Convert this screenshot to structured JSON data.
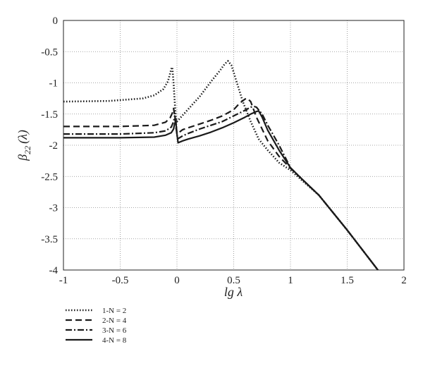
{
  "chart_data": {
    "type": "line",
    "xlabel": "lg λ",
    "ylabel_main": "β",
    "ylabel_sub": "22",
    "ylabel_tail": "(λ)",
    "xlim": [
      -1,
      2
    ],
    "ylim": [
      -4,
      0
    ],
    "x_ticks": [
      -1,
      -0.5,
      0,
      0.5,
      1,
      1.5,
      2
    ],
    "x_tick_labels": [
      "-1",
      "-0.5",
      "0",
      "0.5",
      "1",
      "1.5",
      "2"
    ],
    "y_ticks": [
      0,
      -0.5,
      -1,
      -1.5,
      -2,
      -2.5,
      -3,
      -3.5,
      -4
    ],
    "y_tick_labels": [
      "0",
      "-0.5",
      "-1",
      "-1.5",
      "-2",
      "-2.5",
      "-3",
      "-3.5",
      "-4"
    ],
    "grid": true,
    "legend_position": "below-left",
    "series": [
      {
        "name": "1-N = 2",
        "style": "dotted",
        "x": [
          -1,
          -0.6,
          -0.3,
          -0.2,
          -0.12,
          -0.08,
          -0.06,
          -0.05,
          -0.045,
          -0.04,
          -0.03,
          -0.02,
          -0.01,
          0.0,
          0.05,
          0.1,
          0.2,
          0.3,
          0.38,
          0.42,
          0.45,
          0.48,
          0.52,
          0.58,
          0.65,
          0.72,
          0.8,
          0.9,
          1.0,
          1.1,
          1.25,
          1.5,
          1.77
        ],
        "y": [
          -1.3,
          -1.29,
          -1.25,
          -1.2,
          -1.1,
          -0.98,
          -0.85,
          -0.78,
          -0.75,
          -0.78,
          -1.0,
          -1.3,
          -1.55,
          -1.62,
          -1.52,
          -1.42,
          -1.22,
          -0.98,
          -0.8,
          -0.7,
          -0.65,
          -0.72,
          -0.95,
          -1.3,
          -1.62,
          -1.9,
          -2.08,
          -2.28,
          -2.4,
          -2.56,
          -2.8,
          -3.36,
          -4.0
        ]
      },
      {
        "name": "2-N = 4",
        "style": "dashed",
        "x": [
          -1,
          -0.5,
          -0.2,
          -0.1,
          -0.06,
          -0.04,
          -0.03,
          -0.02,
          -0.01,
          0.0,
          0.05,
          0.1,
          0.2,
          0.3,
          0.4,
          0.5,
          0.55,
          0.6,
          0.62,
          0.65,
          0.7,
          0.8,
          0.9,
          1.0,
          1.1,
          1.25,
          1.5,
          1.77
        ],
        "y": [
          -1.7,
          -1.7,
          -1.68,
          -1.63,
          -1.56,
          -1.48,
          -1.41,
          -1.52,
          -1.7,
          -1.82,
          -1.75,
          -1.72,
          -1.66,
          -1.6,
          -1.53,
          -1.43,
          -1.33,
          -1.26,
          -1.25,
          -1.3,
          -1.55,
          -1.93,
          -2.18,
          -2.37,
          -2.54,
          -2.8,
          -3.36,
          -4.0
        ]
      },
      {
        "name": "3-N = 6",
        "style": "dashdot",
        "x": [
          -1,
          -0.5,
          -0.2,
          -0.1,
          -0.05,
          -0.03,
          -0.02,
          -0.01,
          0.0,
          0.005,
          0.05,
          0.1,
          0.2,
          0.3,
          0.4,
          0.5,
          0.6,
          0.65,
          0.68,
          0.7,
          0.75,
          0.8,
          0.9,
          1.0,
          1.1,
          1.25,
          1.5,
          1.77
        ],
        "y": [
          -1.82,
          -1.82,
          -1.8,
          -1.77,
          -1.71,
          -1.62,
          -1.53,
          -1.6,
          -1.82,
          -1.9,
          -1.85,
          -1.81,
          -1.74,
          -1.68,
          -1.62,
          -1.53,
          -1.44,
          -1.39,
          -1.38,
          -1.39,
          -1.5,
          -1.68,
          -2.0,
          -2.36,
          -2.54,
          -2.8,
          -3.36,
          -4.0
        ]
      },
      {
        "name": "4-N = 8",
        "style": "solid",
        "x": [
          -1,
          -0.5,
          -0.2,
          -0.1,
          -0.05,
          -0.03,
          -0.02,
          -0.01,
          0.0,
          0.01,
          0.05,
          0.1,
          0.2,
          0.3,
          0.4,
          0.5,
          0.6,
          0.65,
          0.7,
          0.72,
          0.75,
          0.8,
          0.9,
          1.0,
          1.1,
          1.25,
          1.5,
          1.77
        ],
        "y": [
          -1.88,
          -1.88,
          -1.87,
          -1.84,
          -1.8,
          -1.74,
          -1.65,
          -1.62,
          -1.82,
          -1.96,
          -1.93,
          -1.9,
          -1.85,
          -1.79,
          -1.72,
          -1.64,
          -1.55,
          -1.5,
          -1.46,
          -1.45,
          -1.55,
          -1.76,
          -2.08,
          -2.36,
          -2.54,
          -2.8,
          -3.36,
          -4.0
        ]
      }
    ]
  }
}
